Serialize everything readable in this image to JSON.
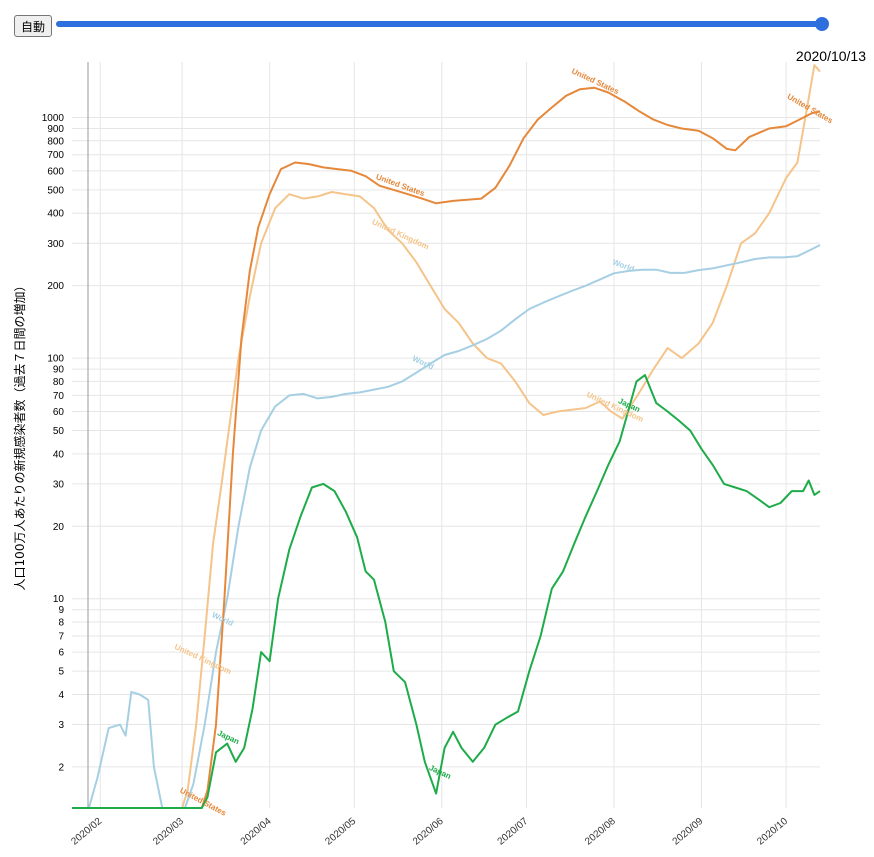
{
  "controls": {
    "auto_label": "自動",
    "slider_progress": 1.0,
    "current_date": "2020/10/13"
  },
  "colors": {
    "slider": "#2f6fdd",
    "United States": "#e6883a",
    "United Kingdom": "#f5c48a",
    "World": "#a6cfe3",
    "Japan": "#1eab49"
  },
  "chart_data": {
    "type": "line",
    "title": "",
    "xlabel": "",
    "ylabel": "人口100万人あたりの新規感染者数（過去７日間の増加）",
    "yscale": "log",
    "ylim": [
      1.35,
      1700
    ],
    "xlim": [
      "2020-01-22",
      "2020-10-13"
    ],
    "grid": true,
    "x_ticks": [
      "2020/02",
      "2020/03",
      "2020/04",
      "2020/05",
      "2020/06",
      "2020/07",
      "2020/08",
      "2020/09",
      "2020/10"
    ],
    "y_ticks": [
      2,
      3,
      4,
      5,
      6,
      7,
      8,
      9,
      10,
      20,
      30,
      40,
      50,
      60,
      70,
      80,
      90,
      100,
      200,
      300,
      400,
      500,
      600,
      700,
      800,
      900,
      1000
    ],
    "series": [
      {
        "name": "United States",
        "points": [
          [
            "2020-01-22",
            1.35
          ],
          [
            "2020-03-08",
            1.35
          ],
          [
            "2020-03-10",
            1.6
          ],
          [
            "2020-03-13",
            3
          ],
          [
            "2020-03-16",
            10
          ],
          [
            "2020-03-19",
            40
          ],
          [
            "2020-03-22",
            120
          ],
          [
            "2020-03-25",
            230
          ],
          [
            "2020-03-28",
            350
          ],
          [
            "2020-04-01",
            480
          ],
          [
            "2020-04-05",
            610
          ],
          [
            "2020-04-10",
            650
          ],
          [
            "2020-04-15",
            640
          ],
          [
            "2020-04-20",
            620
          ],
          [
            "2020-04-25",
            610
          ],
          [
            "2020-04-30",
            600
          ],
          [
            "2020-05-05",
            570
          ],
          [
            "2020-05-10",
            520
          ],
          [
            "2020-05-15",
            500
          ],
          [
            "2020-05-20",
            480
          ],
          [
            "2020-05-25",
            460
          ],
          [
            "2020-05-30",
            440
          ],
          [
            "2020-06-05",
            450
          ],
          [
            "2020-06-10",
            455
          ],
          [
            "2020-06-15",
            460
          ],
          [
            "2020-06-20",
            510
          ],
          [
            "2020-06-25",
            630
          ],
          [
            "2020-06-30",
            820
          ],
          [
            "2020-07-05",
            980
          ],
          [
            "2020-07-10",
            1100
          ],
          [
            "2020-07-15",
            1230
          ],
          [
            "2020-07-20",
            1310
          ],
          [
            "2020-07-25",
            1330
          ],
          [
            "2020-07-30",
            1270
          ],
          [
            "2020-08-05",
            1160
          ],
          [
            "2020-08-10",
            1060
          ],
          [
            "2020-08-15",
            980
          ],
          [
            "2020-08-20",
            930
          ],
          [
            "2020-08-25",
            900
          ],
          [
            "2020-08-31",
            880
          ],
          [
            "2020-09-05",
            820
          ],
          [
            "2020-09-10",
            740
          ],
          [
            "2020-09-13",
            730
          ],
          [
            "2020-09-18",
            830
          ],
          [
            "2020-09-25",
            900
          ],
          [
            "2020-10-01",
            920
          ],
          [
            "2020-10-05",
            970
          ],
          [
            "2020-10-10",
            1040
          ],
          [
            "2020-10-13",
            1060
          ]
        ]
      },
      {
        "name": "United Kingdom",
        "points": [
          [
            "2020-01-22",
            1.35
          ],
          [
            "2020-03-01",
            1.35
          ],
          [
            "2020-03-03",
            1.6
          ],
          [
            "2020-03-06",
            3
          ],
          [
            "2020-03-09",
            7
          ],
          [
            "2020-03-12",
            17
          ],
          [
            "2020-03-15",
            30
          ],
          [
            "2020-03-18",
            55
          ],
          [
            "2020-03-21",
            100
          ],
          [
            "2020-03-25",
            180
          ],
          [
            "2020-03-29",
            300
          ],
          [
            "2020-04-03",
            420
          ],
          [
            "2020-04-08",
            480
          ],
          [
            "2020-04-13",
            460
          ],
          [
            "2020-04-18",
            470
          ],
          [
            "2020-04-23",
            490
          ],
          [
            "2020-04-28",
            480
          ],
          [
            "2020-05-03",
            470
          ],
          [
            "2020-05-08",
            420
          ],
          [
            "2020-05-13",
            340
          ],
          [
            "2020-05-18",
            300
          ],
          [
            "2020-05-23",
            250
          ],
          [
            "2020-05-28",
            200
          ],
          [
            "2020-06-02",
            160
          ],
          [
            "2020-06-07",
            140
          ],
          [
            "2020-06-12",
            115
          ],
          [
            "2020-06-17",
            100
          ],
          [
            "2020-06-22",
            95
          ],
          [
            "2020-06-27",
            80
          ],
          [
            "2020-07-02",
            65
          ],
          [
            "2020-07-07",
            58
          ],
          [
            "2020-07-12",
            60
          ],
          [
            "2020-07-17",
            61
          ],
          [
            "2020-07-22",
            62
          ],
          [
            "2020-07-27",
            66
          ],
          [
            "2020-07-31",
            60
          ],
          [
            "2020-08-04",
            56
          ],
          [
            "2020-08-10",
            72
          ],
          [
            "2020-08-15",
            90
          ],
          [
            "2020-08-20",
            110
          ],
          [
            "2020-08-25",
            100
          ],
          [
            "2020-08-31",
            115
          ],
          [
            "2020-09-05",
            140
          ],
          [
            "2020-09-10",
            200
          ],
          [
            "2020-09-15",
            300
          ],
          [
            "2020-09-20",
            330
          ],
          [
            "2020-09-25",
            400
          ],
          [
            "2020-10-01",
            560
          ],
          [
            "2020-10-05",
            650
          ],
          [
            "2020-10-09",
            1200
          ],
          [
            "2020-10-11",
            1650
          ],
          [
            "2020-10-13",
            1550
          ]
        ]
      },
      {
        "name": "World",
        "points": [
          [
            "2020-01-22",
            1.35
          ],
          [
            "2020-01-28",
            1.35
          ],
          [
            "2020-01-31",
            1.8
          ],
          [
            "2020-02-04",
            2.9
          ],
          [
            "2020-02-08",
            3.0
          ],
          [
            "2020-02-10",
            2.7
          ],
          [
            "2020-02-12",
            4.1
          ],
          [
            "2020-02-15",
            4.0
          ],
          [
            "2020-02-18",
            3.8
          ],
          [
            "2020-02-20",
            2.0
          ],
          [
            "2020-02-23",
            1.35
          ],
          [
            "2020-03-02",
            1.35
          ],
          [
            "2020-03-05",
            1.7
          ],
          [
            "2020-03-09",
            3
          ],
          [
            "2020-03-13",
            6
          ],
          [
            "2020-03-17",
            10
          ],
          [
            "2020-03-21",
            20
          ],
          [
            "2020-03-25",
            35
          ],
          [
            "2020-03-29",
            50
          ],
          [
            "2020-04-03",
            63
          ],
          [
            "2020-04-08",
            70
          ],
          [
            "2020-04-13",
            71
          ],
          [
            "2020-04-18",
            68
          ],
          [
            "2020-04-23",
            69
          ],
          [
            "2020-04-28",
            71
          ],
          [
            "2020-05-03",
            72
          ],
          [
            "2020-05-08",
            74
          ],
          [
            "2020-05-13",
            76
          ],
          [
            "2020-05-18",
            80
          ],
          [
            "2020-05-23",
            87
          ],
          [
            "2020-05-28",
            95
          ],
          [
            "2020-06-02",
            103
          ],
          [
            "2020-06-07",
            107
          ],
          [
            "2020-06-12",
            113
          ],
          [
            "2020-06-17",
            120
          ],
          [
            "2020-06-22",
            130
          ],
          [
            "2020-06-27",
            145
          ],
          [
            "2020-07-02",
            160
          ],
          [
            "2020-07-07",
            170
          ],
          [
            "2020-07-12",
            180
          ],
          [
            "2020-07-17",
            190
          ],
          [
            "2020-07-22",
            200
          ],
          [
            "2020-07-27",
            212
          ],
          [
            "2020-08-01",
            225
          ],
          [
            "2020-08-06",
            230
          ],
          [
            "2020-08-11",
            233
          ],
          [
            "2020-08-16",
            233
          ],
          [
            "2020-08-21",
            226
          ],
          [
            "2020-08-26",
            226
          ],
          [
            "2020-08-31",
            232
          ],
          [
            "2020-09-05",
            236
          ],
          [
            "2020-09-10",
            243
          ],
          [
            "2020-09-15",
            250
          ],
          [
            "2020-09-20",
            258
          ],
          [
            "2020-09-25",
            262
          ],
          [
            "2020-09-30",
            262
          ],
          [
            "2020-10-05",
            265
          ],
          [
            "2020-10-10",
            283
          ],
          [
            "2020-10-13",
            295
          ]
        ]
      },
      {
        "name": "Japan",
        "points": [
          [
            "2020-01-22",
            1.35
          ],
          [
            "2020-03-08",
            1.35
          ],
          [
            "2020-03-10",
            1.5
          ],
          [
            "2020-03-13",
            2.3
          ],
          [
            "2020-03-17",
            2.5
          ],
          [
            "2020-03-20",
            2.1
          ],
          [
            "2020-03-23",
            2.4
          ],
          [
            "2020-03-26",
            3.5
          ],
          [
            "2020-03-29",
            6
          ],
          [
            "2020-04-01",
            5.5
          ],
          [
            "2020-04-04",
            10
          ],
          [
            "2020-04-08",
            16
          ],
          [
            "2020-04-12",
            22
          ],
          [
            "2020-04-16",
            29
          ],
          [
            "2020-04-20",
            30
          ],
          [
            "2020-04-24",
            28
          ],
          [
            "2020-04-28",
            23
          ],
          [
            "2020-05-02",
            18
          ],
          [
            "2020-05-05",
            13
          ],
          [
            "2020-05-08",
            12
          ],
          [
            "2020-05-12",
            8
          ],
          [
            "2020-05-15",
            5
          ],
          [
            "2020-05-19",
            4.5
          ],
          [
            "2020-05-23",
            3
          ],
          [
            "2020-05-26",
            2.1
          ],
          [
            "2020-05-30",
            1.55
          ],
          [
            "2020-06-02",
            2.4
          ],
          [
            "2020-06-05",
            2.8
          ],
          [
            "2020-06-08",
            2.4
          ],
          [
            "2020-06-12",
            2.1
          ],
          [
            "2020-06-16",
            2.4
          ],
          [
            "2020-06-20",
            3.0
          ],
          [
            "2020-06-24",
            3.2
          ],
          [
            "2020-06-28",
            3.4
          ],
          [
            "2020-07-02",
            5
          ],
          [
            "2020-07-06",
            7
          ],
          [
            "2020-07-10",
            11
          ],
          [
            "2020-07-14",
            13
          ],
          [
            "2020-07-18",
            17
          ],
          [
            "2020-07-22",
            22
          ],
          [
            "2020-07-26",
            28
          ],
          [
            "2020-07-30",
            36
          ],
          [
            "2020-08-03",
            45
          ],
          [
            "2020-08-06",
            60
          ],
          [
            "2020-08-09",
            80
          ],
          [
            "2020-08-12",
            85
          ],
          [
            "2020-08-16",
            65
          ],
          [
            "2020-08-20",
            60
          ],
          [
            "2020-08-24",
            55
          ],
          [
            "2020-08-28",
            50
          ],
          [
            "2020-09-01",
            42
          ],
          [
            "2020-09-05",
            36
          ],
          [
            "2020-09-09",
            30
          ],
          [
            "2020-09-13",
            29
          ],
          [
            "2020-09-17",
            28
          ],
          [
            "2020-09-21",
            26
          ],
          [
            "2020-09-25",
            24
          ],
          [
            "2020-09-29",
            25
          ],
          [
            "2020-10-03",
            28
          ],
          [
            "2020-10-07",
            28
          ],
          [
            "2020-10-09",
            31
          ],
          [
            "2020-10-11",
            27
          ],
          [
            "2020-10-13",
            28
          ]
        ]
      }
    ],
    "annotations": [
      {
        "text": "United States",
        "series": "United States",
        "at": "2020-07-25",
        "rotate": 25
      },
      {
        "text": "United States",
        "series": "United States",
        "at": "2020-05-17",
        "rotate": 20
      },
      {
        "text": "United States",
        "series": "United States",
        "at": "2020-03-08",
        "rotate": 28
      },
      {
        "text": "United States",
        "series": "United States",
        "at": "2020-10-09",
        "rotate": 30
      },
      {
        "text": "United Kingdom",
        "series": "United Kingdom",
        "at": "2020-05-17",
        "rotate": 25
      },
      {
        "text": "United Kingdom",
        "series": "United Kingdom",
        "at": "2020-08-01",
        "rotate": 25
      },
      {
        "text": "United Kingdom",
        "series": "United Kingdom",
        "at": "2020-03-08",
        "rotate": 25
      },
      {
        "text": "World",
        "series": "World",
        "at": "2020-08-04",
        "rotate": 20
      },
      {
        "text": "World",
        "series": "World",
        "at": "2020-05-25",
        "rotate": 25
      },
      {
        "text": "World",
        "series": "World",
        "at": "2020-03-15",
        "rotate": 25
      },
      {
        "text": "Japan",
        "series": "Japan",
        "at": "2020-08-06",
        "rotate": 25
      },
      {
        "text": "Japan",
        "series": "Japan",
        "at": "2020-05-31",
        "rotate": 25
      },
      {
        "text": "Japan",
        "series": "Japan",
        "at": "2020-03-17",
        "rotate": 25
      }
    ]
  }
}
